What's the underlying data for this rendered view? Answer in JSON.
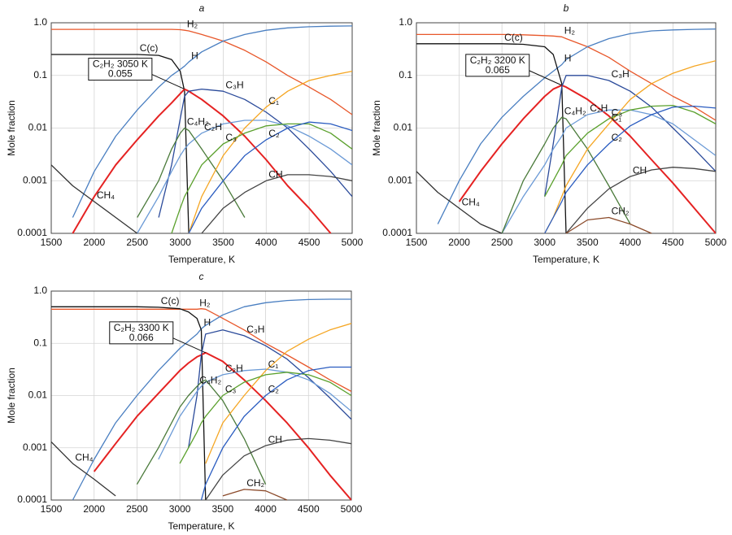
{
  "chart_data": [
    {
      "type": "line",
      "title": "a",
      "xlabel": "Temperature, K",
      "ylabel": "Mole fraction",
      "yscale": "log",
      "grid": true,
      "xlim": [
        1500,
        5000
      ],
      "xticks": [
        1500,
        2000,
        2500,
        3000,
        3500,
        4000,
        4500,
        5000
      ],
      "ylim": [
        0.0001,
        1
      ],
      "yticks": [
        0.0001,
        0.001,
        0.01,
        0.1,
        {
          "value": 1,
          "label": "1.0"
        }
      ],
      "annotation": {
        "label": "C₂H₂ 3050 K",
        "value": 0.055
      },
      "x": [
        1500,
        1750,
        2000,
        2250,
        2500,
        2750,
        2900,
        3000,
        3050,
        3100,
        3250,
        3500,
        3750,
        4000,
        4250,
        4500,
        4750,
        5000
      ],
      "series": [
        {
          "name": "H₂",
          "color": "#e8572a",
          "values": [
            0.75,
            0.75,
            0.75,
            0.75,
            0.75,
            0.75,
            0.75,
            0.74,
            0.72,
            0.7,
            0.6,
            0.45,
            0.3,
            0.18,
            0.1,
            0.06,
            0.035,
            0.018
          ]
        },
        {
          "name": "H",
          "color": "#4a7fc1",
          "values": [
            null,
            0.0002,
            0.0015,
            0.007,
            0.022,
            0.06,
            0.1,
            0.13,
            0.15,
            0.18,
            0.28,
            0.45,
            0.6,
            0.72,
            0.8,
            0.84,
            0.86,
            0.87
          ]
        },
        {
          "name": "C(c)",
          "color": "#111111",
          "values": [
            0.25,
            0.25,
            0.25,
            0.25,
            0.25,
            0.24,
            0.2,
            0.12,
            0.05,
            0.0001,
            null,
            null,
            null,
            null,
            null,
            null,
            null,
            null
          ]
        },
        {
          "color": "#e52222",
          "values": [
            null,
            0.0001,
            0.0005,
            0.002,
            0.006,
            0.017,
            0.03,
            0.045,
            0.055,
            0.05,
            0.035,
            0.017,
            0.007,
            0.0025,
            0.0008,
            0.0003,
            0.0001,
            null
          ]
        },
        {
          "name": "C₃H",
          "color": "#2a4a9a",
          "values": [
            null,
            null,
            null,
            null,
            null,
            0.0002,
            0.002,
            0.015,
            0.04,
            0.05,
            0.055,
            0.05,
            0.035,
            0.02,
            0.01,
            0.004,
            0.0015,
            0.0005
          ]
        },
        {
          "name": "C₂H",
          "color": "#6b9ad6",
          "values": [
            null,
            null,
            null,
            null,
            0.0001,
            0.0005,
            0.0015,
            0.003,
            0.004,
            0.005,
            0.008,
            0.012,
            0.014,
            0.014,
            0.011,
            0.007,
            0.004,
            0.002
          ]
        },
        {
          "name": "C₄H₂",
          "color": "#4a7a3a",
          "values": [
            null,
            null,
            null,
            null,
            0.0002,
            0.001,
            0.004,
            0.008,
            0.01,
            0.009,
            0.004,
            0.001,
            0.0002,
            null,
            null,
            null,
            null,
            null
          ]
        },
        {
          "name": "CH₄",
          "color": "#333333",
          "values": [
            0.002,
            0.0008,
            0.0004,
            0.0002,
            0.0001,
            null,
            null,
            null,
            null,
            null,
            null,
            null,
            null,
            null,
            null,
            null,
            null,
            null
          ]
        },
        {
          "name": "C₁",
          "color": "#f5a623",
          "values": [
            null,
            null,
            null,
            null,
            null,
            null,
            null,
            null,
            null,
            0.0001,
            0.0005,
            0.003,
            0.01,
            0.025,
            0.05,
            0.08,
            0.1,
            0.12
          ]
        },
        {
          "name": "C₃",
          "color": "#5aa02c",
          "values": [
            null,
            null,
            null,
            null,
            null,
            null,
            0.0001,
            0.0003,
            0.0005,
            0.0007,
            0.002,
            0.005,
            0.008,
            0.011,
            0.012,
            0.012,
            0.008,
            0.004
          ]
        },
        {
          "name": "C₂",
          "color": "#2a5cc0",
          "values": [
            null,
            null,
            null,
            null,
            null,
            null,
            null,
            null,
            null,
            0.0001,
            0.0003,
            0.001,
            0.003,
            0.006,
            0.01,
            0.013,
            0.012,
            0.009
          ]
        },
        {
          "name": "CH",
          "color": "#444444",
          "values": [
            null,
            null,
            null,
            null,
            null,
            null,
            null,
            null,
            null,
            null,
            0.0001,
            0.0003,
            0.0006,
            0.001,
            0.0013,
            0.0013,
            0.0012,
            0.001
          ]
        }
      ]
    },
    {
      "type": "line",
      "title": "b",
      "xlabel": "Temperature, K",
      "ylabel": "Mole fraction",
      "yscale": "log",
      "grid": true,
      "xlim": [
        1500,
        5000
      ],
      "xticks": [
        1500,
        2000,
        2500,
        3000,
        3500,
        4000,
        4500,
        5000
      ],
      "ylim": [
        0.0001,
        1
      ],
      "yticks": [
        0.0001,
        0.001,
        0.01,
        0.1,
        {
          "value": 1,
          "label": "1.0"
        }
      ],
      "annotation": {
        "label": "C₂H₂ 3200 K",
        "value": 0.065
      },
      "x": [
        1500,
        1750,
        2000,
        2250,
        2500,
        2750,
        3000,
        3100,
        3200,
        3250,
        3500,
        3750,
        4000,
        4250,
        4500,
        4750,
        5000
      ],
      "series": [
        {
          "name": "H₂",
          "color": "#e8572a",
          "values": [
            0.6,
            0.6,
            0.6,
            0.6,
            0.6,
            0.59,
            0.57,
            0.56,
            0.54,
            0.5,
            0.35,
            0.22,
            0.12,
            0.07,
            0.04,
            0.025,
            0.014
          ]
        },
        {
          "name": "H",
          "color": "#4a7fc1",
          "values": [
            null,
            0.00015,
            0.001,
            0.005,
            0.016,
            0.04,
            0.09,
            0.12,
            0.16,
            0.2,
            0.35,
            0.5,
            0.62,
            0.7,
            0.73,
            0.75,
            0.76
          ]
        },
        {
          "name": "C(c)",
          "color": "#111111",
          "values": [
            0.4,
            0.4,
            0.4,
            0.4,
            0.4,
            0.39,
            0.35,
            0.25,
            0.07,
            0.0001,
            null,
            null,
            null,
            null,
            null,
            null,
            null
          ]
        },
        {
          "color": "#e52222",
          "values": [
            null,
            null,
            0.0004,
            0.0015,
            0.005,
            0.015,
            0.04,
            0.055,
            0.065,
            0.06,
            0.035,
            0.017,
            0.007,
            0.0025,
            0.0009,
            0.0003,
            0.0001
          ]
        },
        {
          "name": "C₃H",
          "color": "#2a4a9a",
          "values": [
            null,
            null,
            null,
            null,
            null,
            null,
            0.0005,
            0.005,
            0.06,
            0.1,
            0.1,
            0.08,
            0.05,
            0.025,
            0.01,
            0.004,
            0.0015
          ]
        },
        {
          "name": "C₂H",
          "color": "#6b9ad6",
          "values": [
            null,
            null,
            null,
            null,
            0.0001,
            0.0005,
            0.002,
            0.004,
            0.007,
            0.01,
            0.018,
            0.022,
            0.022,
            0.018,
            0.012,
            0.006,
            0.003
          ]
        },
        {
          "name": "C₄H₂",
          "color": "#4a7a3a",
          "values": [
            null,
            null,
            null,
            null,
            0.0001,
            0.001,
            0.005,
            0.01,
            0.016,
            0.015,
            0.004,
            0.0008,
            0.00015,
            null,
            null,
            null,
            null
          ]
        },
        {
          "name": "CH₄",
          "color": "#333333",
          "values": [
            0.0015,
            0.0006,
            0.0003,
            0.00015,
            0.0001,
            null,
            null,
            null,
            null,
            null,
            null,
            null,
            null,
            null,
            null,
            null,
            null
          ]
        },
        {
          "name": "C₁",
          "color": "#f5a623",
          "values": [
            null,
            null,
            null,
            null,
            null,
            null,
            0.0001,
            0.0002,
            0.0005,
            0.0008,
            0.004,
            0.012,
            0.035,
            0.07,
            0.11,
            0.15,
            0.19
          ]
        },
        {
          "name": "C₃",
          "color": "#5aa02c",
          "values": [
            null,
            null,
            null,
            null,
            null,
            null,
            0.0005,
            0.001,
            0.002,
            0.003,
            0.008,
            0.015,
            0.022,
            0.026,
            0.027,
            0.02,
            0.012
          ]
        },
        {
          "name": "C₂",
          "color": "#2a5cc0",
          "values": [
            null,
            null,
            null,
            null,
            null,
            null,
            0.0001,
            0.0002,
            0.0004,
            0.0006,
            0.002,
            0.005,
            0.011,
            0.018,
            0.025,
            0.026,
            0.024
          ]
        },
        {
          "name": "CH",
          "color": "#444444",
          "values": [
            null,
            null,
            null,
            null,
            null,
            null,
            null,
            null,
            null,
            0.0001,
            0.0003,
            0.0007,
            0.0012,
            0.0016,
            0.0018,
            0.0017,
            0.0015
          ]
        },
        {
          "name": "CH₂",
          "color": "#8b4a2a",
          "values": [
            null,
            null,
            null,
            null,
            null,
            null,
            null,
            null,
            null,
            0.0001,
            0.00018,
            0.0002,
            0.00015,
            0.0001,
            null,
            null,
            null
          ]
        }
      ]
    },
    {
      "type": "line",
      "title": "c",
      "xlabel": "Temperature, K",
      "ylabel": "Mole fraction",
      "yscale": "log",
      "grid": true,
      "xlim": [
        1500,
        5000
      ],
      "xticks": [
        1500,
        2000,
        2500,
        3000,
        3500,
        4000,
        4500,
        5000
      ],
      "ylim": [
        0.0001,
        1
      ],
      "yticks": [
        0.0001,
        0.001,
        0.01,
        0.1,
        {
          "value": 1,
          "label": "1.0"
        }
      ],
      "annotation": {
        "label": "C₂H₂ 3300 K",
        "value": 0.066
      },
      "x": [
        1500,
        1750,
        2000,
        2250,
        2500,
        2750,
        3000,
        3100,
        3200,
        3250,
        3300,
        3500,
        3750,
        4000,
        4250,
        4500,
        4750,
        5000
      ],
      "series": [
        {
          "name": "H₂",
          "color": "#e8572a",
          "values": [
            0.45,
            0.45,
            0.45,
            0.45,
            0.45,
            0.45,
            0.45,
            0.45,
            0.45,
            0.46,
            0.45,
            0.3,
            0.18,
            0.1,
            0.06,
            0.035,
            0.02,
            0.012
          ]
        },
        {
          "name": "H",
          "color": "#4a7fc1",
          "values": [
            null,
            0.0001,
            0.0006,
            0.003,
            0.01,
            0.03,
            0.08,
            0.11,
            0.15,
            0.19,
            0.22,
            0.35,
            0.5,
            0.6,
            0.66,
            0.69,
            0.7,
            0.7
          ]
        },
        {
          "name": "C(c)",
          "color": "#111111",
          "values": [
            0.5,
            0.5,
            0.5,
            0.5,
            0.5,
            0.49,
            0.46,
            0.4,
            0.3,
            0.18,
            0.0001,
            null,
            null,
            null,
            null,
            null,
            null,
            null
          ]
        },
        {
          "color": "#e52222",
          "values": [
            null,
            null,
            0.00035,
            0.0012,
            0.004,
            0.011,
            0.03,
            0.042,
            0.055,
            0.06,
            0.066,
            0.045,
            0.02,
            0.008,
            0.003,
            0.001,
            0.0003,
            0.0001
          ]
        },
        {
          "name": "C₃H",
          "color": "#2a4a9a",
          "values": [
            null,
            null,
            null,
            null,
            null,
            null,
            null,
            0.001,
            0.01,
            0.06,
            0.15,
            0.18,
            0.14,
            0.09,
            0.05,
            0.022,
            0.009,
            0.0035
          ]
        },
        {
          "name": "C₂H",
          "color": "#6b9ad6",
          "values": [
            null,
            null,
            null,
            null,
            null,
            0.0006,
            0.004,
            0.007,
            0.012,
            0.015,
            0.018,
            0.025,
            0.03,
            0.032,
            0.028,
            0.02,
            0.011,
            0.005
          ]
        },
        {
          "name": "C₄H₂",
          "color": "#4a7a3a",
          "values": [
            null,
            null,
            null,
            null,
            0.0002,
            0.001,
            0.006,
            0.01,
            0.015,
            0.018,
            0.02,
            0.008,
            0.0015,
            0.0002,
            null,
            null,
            null,
            null
          ]
        },
        {
          "name": "CH₄",
          "color": "#333333",
          "values": [
            0.0013,
            0.0005,
            0.00025,
            0.00012,
            null,
            null,
            null,
            null,
            null,
            null,
            null,
            null,
            null,
            null,
            null,
            null,
            null,
            null
          ]
        },
        {
          "name": "C₁",
          "color": "#f5a623",
          "values": [
            null,
            null,
            null,
            null,
            null,
            null,
            null,
            null,
            null,
            null,
            0.0005,
            0.003,
            0.01,
            0.03,
            0.07,
            0.12,
            0.18,
            0.24
          ]
        },
        {
          "name": "C₃",
          "color": "#5aa02c",
          "values": [
            null,
            null,
            null,
            null,
            null,
            null,
            0.0005,
            0.001,
            0.002,
            0.003,
            0.004,
            0.01,
            0.018,
            0.025,
            0.028,
            0.025,
            0.018,
            0.01
          ]
        },
        {
          "name": "C₂",
          "color": "#2a5cc0",
          "values": [
            null,
            null,
            null,
            null,
            null,
            null,
            null,
            null,
            null,
            0.0001,
            0.0002,
            0.001,
            0.004,
            0.01,
            0.02,
            0.03,
            0.035,
            0.035
          ]
        },
        {
          "name": "CH",
          "color": "#444444",
          "values": [
            null,
            null,
            null,
            null,
            null,
            null,
            null,
            null,
            null,
            null,
            0.0001,
            0.0003,
            0.0007,
            0.0011,
            0.0014,
            0.0015,
            0.0014,
            0.0012
          ]
        },
        {
          "name": "CH₂",
          "color": "#8b4a2a",
          "values": [
            null,
            null,
            null,
            null,
            null,
            null,
            null,
            null,
            null,
            null,
            null,
            0.00012,
            0.00016,
            0.00015,
            0.0001,
            null,
            null,
            null
          ]
        }
      ]
    }
  ]
}
